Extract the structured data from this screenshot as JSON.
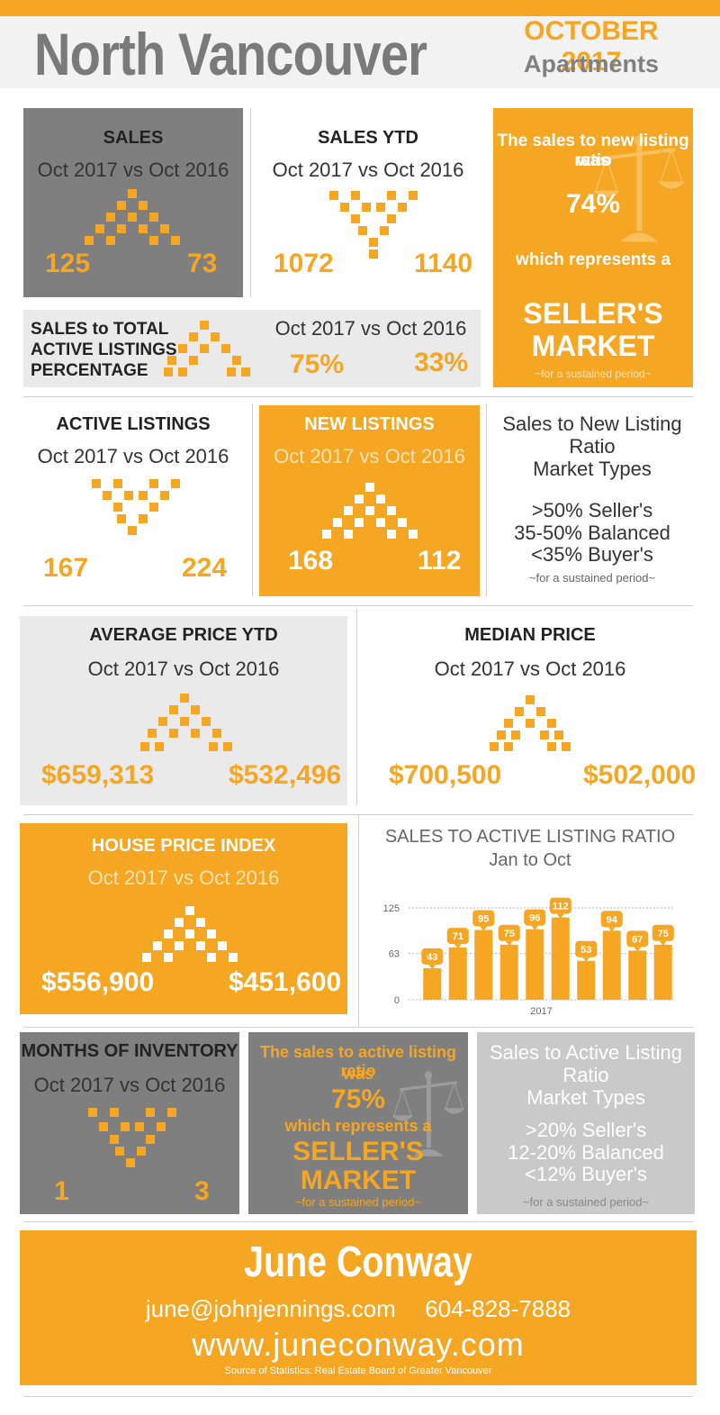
{
  "header": {
    "title": "North Vancouver",
    "date": "OCTOBER 2017",
    "subtitle": "Apartments"
  },
  "sales": {
    "title": "SALES",
    "compare": "Oct 2017 vs Oct 2016",
    "v2017": "125",
    "v2016": "73"
  },
  "sales_ytd": {
    "title": "SALES YTD",
    "compare": "Oct 2017 vs Oct 2016",
    "v2017": "1072",
    "v2016": "1140"
  },
  "ratio_box": {
    "line1": "The sales to new listing ratio",
    "line2": "was",
    "pct": "74%",
    "line3": "which represents a",
    "market1": "SELLER'S",
    "market2": "MARKET",
    "note": "~for a sustained period~"
  },
  "sales_total": {
    "l1": "SALES to TOTAL",
    "l2": "ACTIVE LISTINGS",
    "l3": "PERCENTAGE",
    "compare": "Oct 2017 vs Oct 2016",
    "v2017": "75%",
    "v2016": "33%"
  },
  "active_listings": {
    "title": "ACTIVE LISTINGS",
    "compare": "Oct 2017 vs Oct 2016",
    "v2017": "167",
    "v2016": "224"
  },
  "new_listings": {
    "title": "NEW LISTINGS",
    "compare": "Oct 2017 vs Oct 2016",
    "v2017": "168",
    "v2016": "112"
  },
  "market_types_1": {
    "l1": "Sales to New Listing",
    "l2": "Ratio",
    "l3": "Market Types",
    "s": ">50% Seller's",
    "b": "35-50% Balanced",
    "u": "<35% Buyer's",
    "note": "~for a sustained period~"
  },
  "avg_price": {
    "title": "AVERAGE PRICE YTD",
    "compare": "Oct 2017 vs Oct 2016",
    "v2017": "$659,313",
    "v2016": "$532,496"
  },
  "median_price": {
    "title": "MEDIAN PRICE",
    "compare": "Oct 2017 vs Oct 2016",
    "v2017": "$700,500",
    "v2016": "$502,000"
  },
  "hpi": {
    "title": "HOUSE PRICE INDEX",
    "compare": "Oct 2017 vs Oct 2016",
    "v2017": "$556,900",
    "v2016": "$451,600"
  },
  "chart_data": {
    "type": "bar",
    "title": "SALES TO ACTIVE LISTING RATIO",
    "subtitle": "Jan to Oct",
    "xlabel": "2017",
    "values": [
      43,
      71,
      95,
      75,
      96,
      112,
      53,
      94,
      67,
      75
    ],
    "yticks": [
      0,
      63,
      125
    ],
    "ylim": [
      0,
      125
    ],
    "color": "#f5a623"
  },
  "moi": {
    "title": "MONTHS OF INVENTORY",
    "compare": "Oct 2017 vs Oct 2016",
    "v2017": "1",
    "v2016": "3"
  },
  "ratio_box2": {
    "line1": "The sales to active listing ratio",
    "line2": "was",
    "pct": "75%",
    "line3": "which represents a",
    "market1": "SELLER'S",
    "market2": "MARKET",
    "note": "~for a sustained period~"
  },
  "market_types_2": {
    "l1": "Sales to Active Listing",
    "l2": "Ratio",
    "l3": "Market Types",
    "s": ">20% Seller's",
    "b": "12-20% Balanced",
    "u": "<12% Buyer's",
    "note": "~for a sustained period~"
  },
  "footer": {
    "name": "June Conway",
    "email": "june@johnjennings.com",
    "phone": "604-828-7888",
    "web": "www.juneconway.com",
    "source": "Source of Statistics: Real Estate Board of Greater Vancouver"
  },
  "colors": {
    "accent": "#f5a623",
    "gray": "#7f7f7f",
    "light": "#eaeaea"
  }
}
